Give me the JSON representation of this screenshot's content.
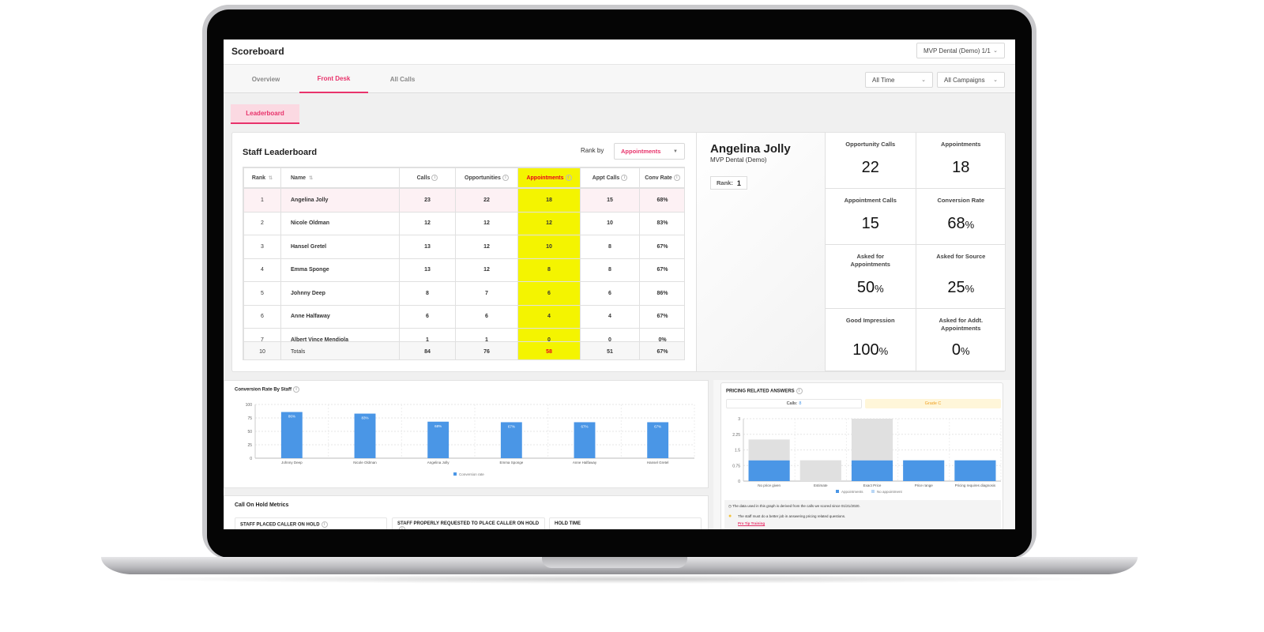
{
  "header": {
    "title": "Scoreboard",
    "account_select": "MVP Dental (Demo) 1/1"
  },
  "tabs": [
    {
      "label": "Overview"
    },
    {
      "label": "Front Desk",
      "active": true
    },
    {
      "label": "All Calls"
    }
  ],
  "filters": {
    "time": "All Time",
    "campaigns": "All Campaigns"
  },
  "subtab": "Leaderboard",
  "leaderboard": {
    "title": "Staff Leaderboard",
    "rank_by_label": "Rank by",
    "rank_by_value": "Appointments",
    "columns": [
      "Rank",
      "Name",
      "Calls",
      "Opportunities",
      "Appointments",
      "Appt Calls",
      "Conv Rate"
    ],
    "rows": [
      [
        "1",
        "Angelina Jolly",
        "23",
        "22",
        "18",
        "15",
        "68%"
      ],
      [
        "2",
        "Nicole Oldman",
        "12",
        "12",
        "12",
        "10",
        "83%"
      ],
      [
        "3",
        "Hansel Gretel",
        "13",
        "12",
        "10",
        "8",
        "67%"
      ],
      [
        "4",
        "Emma Sponge",
        "13",
        "12",
        "8",
        "8",
        "67%"
      ],
      [
        "5",
        "Johnny Deep",
        "8",
        "7",
        "6",
        "6",
        "86%"
      ],
      [
        "6",
        "Anne Halfaway",
        "6",
        "6",
        "4",
        "4",
        "67%"
      ],
      [
        "7",
        "Albert Vince Mendiola",
        "1",
        "1",
        "0",
        "0",
        "0%"
      ]
    ],
    "totals": [
      "10",
      "Totals",
      "84",
      "76",
      "58",
      "51",
      "67%"
    ],
    "highlight_color": "#f4f400"
  },
  "profile": {
    "name": "Angelina Jolly",
    "org": "MVP Dental (Demo)",
    "rank_label": "Rank:",
    "rank": "1",
    "stats": [
      {
        "label": "Opportunity Calls",
        "value": "22",
        "unit": ""
      },
      {
        "label": "Appointments",
        "value": "18",
        "unit": ""
      },
      {
        "label": "Appointment Calls",
        "value": "15",
        "unit": ""
      },
      {
        "label": "Conversion Rate",
        "value": "68",
        "unit": "%"
      },
      {
        "label": "Asked for Appointments",
        "value": "50",
        "unit": "%"
      },
      {
        "label": "Asked for Source",
        "value": "25",
        "unit": "%"
      },
      {
        "label": "Good Impression",
        "value": "100",
        "unit": "%"
      },
      {
        "label": "Asked for Addt. Appointments",
        "value": "0",
        "unit": "%"
      }
    ]
  },
  "chart_data": [
    {
      "type": "bar",
      "title": "Conversion Rate By Staff",
      "categories": [
        "Johnny Deep",
        "Nicole Oldman",
        "Angelina Jolly",
        "Emma Sponge",
        "Anne Halfaway",
        "Hansel Gretel"
      ],
      "series": [
        {
          "name": "Conversion rate",
          "values": [
            86,
            83,
            68,
            67,
            67,
            67
          ],
          "color": "#4a96e6"
        }
      ],
      "data_labels": [
        "86%",
        "83%",
        "68%",
        "67%",
        "67%",
        "67%"
      ],
      "ylim": [
        0,
        100
      ],
      "yticks": [
        "0",
        "25",
        "50",
        "75",
        "100"
      ],
      "grid": true,
      "legend": "bottom"
    },
    {
      "type": "bar",
      "stacked": true,
      "title": "PRICING RELATED ANSWERS",
      "categories": [
        "No price given",
        "Estimate",
        "Exact Price",
        "Price range",
        "Pricing requires diagnosis"
      ],
      "series": [
        {
          "name": "Appointments",
          "values": [
            1,
            0,
            1,
            1,
            1
          ],
          "color": "#4a96e6"
        },
        {
          "name": "No appointment",
          "values": [
            1,
            1,
            2,
            0,
            0
          ],
          "color": "#e0e0e0"
        }
      ],
      "ylim": [
        0,
        3
      ],
      "yticks": [
        "0",
        "0.75",
        "1.5",
        "2.25",
        "3"
      ],
      "grid": true,
      "legend": "bottom"
    }
  ],
  "pricing": {
    "calls_label": "Calls:",
    "calls_value": "8",
    "grade": "Grade C",
    "note": "The data used in this graph is derived from the calls we scored since 01/21/2020.",
    "tip": "The staff must do a better job in answering pricing related questions.",
    "tip_link": "Pro Tip Training"
  },
  "hold": {
    "title": "Call On Hold Metrics",
    "boxes": [
      "STAFF PLACED CALLER ON HOLD",
      "STAFF PROPERLY REQUESTED TO PLACE CALLER ON HOLD",
      "HOLD TIME"
    ]
  }
}
